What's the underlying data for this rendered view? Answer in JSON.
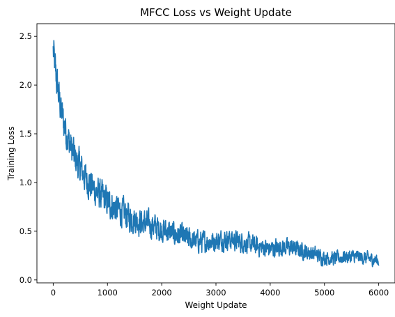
{
  "chart_data": {
    "type": "line",
    "title": "MFCC Loss vs Weight Update",
    "xlabel": "Weight Update",
    "ylabel": "Training Loss",
    "xlim": [
      -300,
      6300
    ],
    "ylim": [
      -0.03,
      2.63
    ],
    "x_ticks": [
      0,
      1000,
      2000,
      3000,
      4000,
      5000,
      6000
    ],
    "y_ticks": [
      0.0,
      0.5,
      1.0,
      1.5,
      2.0,
      2.5
    ],
    "x_tick_labels": [
      "0",
      "1000",
      "2000",
      "3000",
      "4000",
      "5000",
      "6000"
    ],
    "y_tick_labels": [
      "0.0",
      "0.5",
      "1.0",
      "1.5",
      "2.0",
      "2.5"
    ],
    "grid": false,
    "series": [
      {
        "color": "#1f77b4",
        "trend": {
          "x": [
            0,
            50,
            100,
            150,
            200,
            300,
            400,
            500,
            600,
            700,
            800,
            900,
            1000,
            1200,
            1400,
            1600,
            1800,
            2000,
            2200,
            2400,
            2600,
            2800,
            3000,
            3200,
            3400,
            3600,
            3800,
            4000,
            4200,
            4400,
            4600,
            4800,
            5000,
            5200,
            5400,
            5600,
            5800,
            6000
          ],
          "y": [
            2.35,
            2.1,
            1.9,
            1.72,
            1.6,
            1.4,
            1.25,
            1.15,
            1.05,
            0.97,
            0.9,
            0.85,
            0.8,
            0.72,
            0.65,
            0.6,
            0.56,
            0.52,
            0.48,
            0.44,
            0.4,
            0.39,
            0.4,
            0.42,
            0.4,
            0.37,
            0.34,
            0.32,
            0.34,
            0.33,
            0.3,
            0.27,
            0.23,
            0.22,
            0.24,
            0.24,
            0.22,
            0.2
          ]
        },
        "noise": {
          "x": [
            0,
            500,
            1000,
            2000,
            3000,
            4000,
            5000,
            6000
          ],
          "amplitude": [
            0.18,
            0.16,
            0.15,
            0.12,
            0.1,
            0.09,
            0.07,
            0.06
          ]
        },
        "x_max": 6000,
        "step": 4
      }
    ]
  }
}
